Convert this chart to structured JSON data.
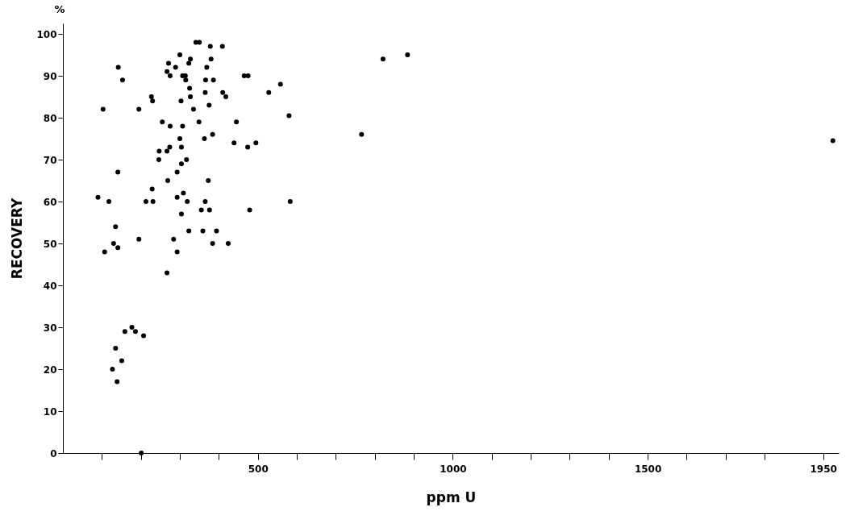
{
  "chart_data": {
    "type": "scatter",
    "xlabel": "ppm U",
    "ylabel": "RECOVERY",
    "annotations": [
      "%"
    ],
    "xlim": [
      0,
      1990
    ],
    "ylim": [
      0,
      102.5
    ],
    "xticks": [
      {
        "value": 100,
        "label": null
      },
      {
        "value": 200,
        "label": null
      },
      {
        "value": 300,
        "label": null
      },
      {
        "value": 400,
        "label": null
      },
      500,
      {
        "value": 600,
        "label": null
      },
      {
        "value": 700,
        "label": null
      },
      {
        "value": 800,
        "label": null
      },
      {
        "value": 900,
        "label": null
      },
      1000,
      {
        "value": 1100,
        "label": null
      },
      {
        "value": 1200,
        "label": null
      },
      {
        "value": 1300,
        "label": null
      },
      {
        "value": 1400,
        "label": null
      },
      1500,
      {
        "value": 1600,
        "label": null
      },
      {
        "value": 1700,
        "label": null
      },
      {
        "value": 1800,
        "label": null
      },
      1950
    ],
    "yticks": [
      0,
      10,
      20,
      30,
      40,
      50,
      60,
      70,
      80,
      90,
      100
    ],
    "grid": false,
    "marker": "circle",
    "series": [
      {
        "color": "#000000",
        "x": [
          341,
          350,
          378,
          409,
          300,
          327,
          323,
          380,
          271,
          289,
          369,
          142,
          267,
          275,
          307,
          314,
          315,
          465,
          475,
          153,
          366,
          386,
          558,
          325,
          365,
          410,
          418,
          528,
          327,
          227,
          230,
          303,
          375,
          335,
          103,
          195,
          580,
          255,
          349,
          275,
          307,
          445,
          363,
          384,
          300,
          439,
          474,
          495,
          304,
          274,
          247,
          267,
          246,
          317,
          304,
          293,
          141,
          269,
          373,
          229,
          309,
          293,
          90,
          118,
          213,
          231,
          319,
          365,
          583,
          355,
          376,
          479,
          304,
          135,
          323,
          359,
          394,
          195,
          284,
          130,
          384,
          424,
          141,
          107,
          293,
          267,
          159,
          177,
          186,
          207,
          135,
          151,
          127,
          139,
          201,
          766,
          821,
          884,
          1975
        ],
        "values": [
          98,
          98,
          97,
          97,
          95,
          94,
          93,
          94,
          93,
          92,
          92,
          92,
          91,
          90,
          90,
          90,
          89,
          90,
          90,
          89,
          89,
          89,
          88,
          87,
          86,
          86,
          85,
          86,
          85,
          85,
          84,
          84,
          83,
          82,
          82,
          82,
          80.5,
          79,
          79,
          78,
          78,
          79,
          75,
          76,
          75,
          74,
          73,
          74,
          73,
          73,
          72,
          72,
          70,
          70,
          69,
          67,
          67,
          65,
          65,
          63,
          62,
          61,
          61,
          60,
          60,
          60,
          60,
          60,
          60,
          58,
          58,
          58,
          57,
          54,
          53,
          53,
          53,
          51,
          51,
          50,
          50,
          50,
          49,
          48,
          48,
          43,
          29,
          30,
          29,
          28,
          25,
          22,
          20,
          17,
          0,
          76,
          94,
          95,
          74.5
        ]
      }
    ]
  }
}
